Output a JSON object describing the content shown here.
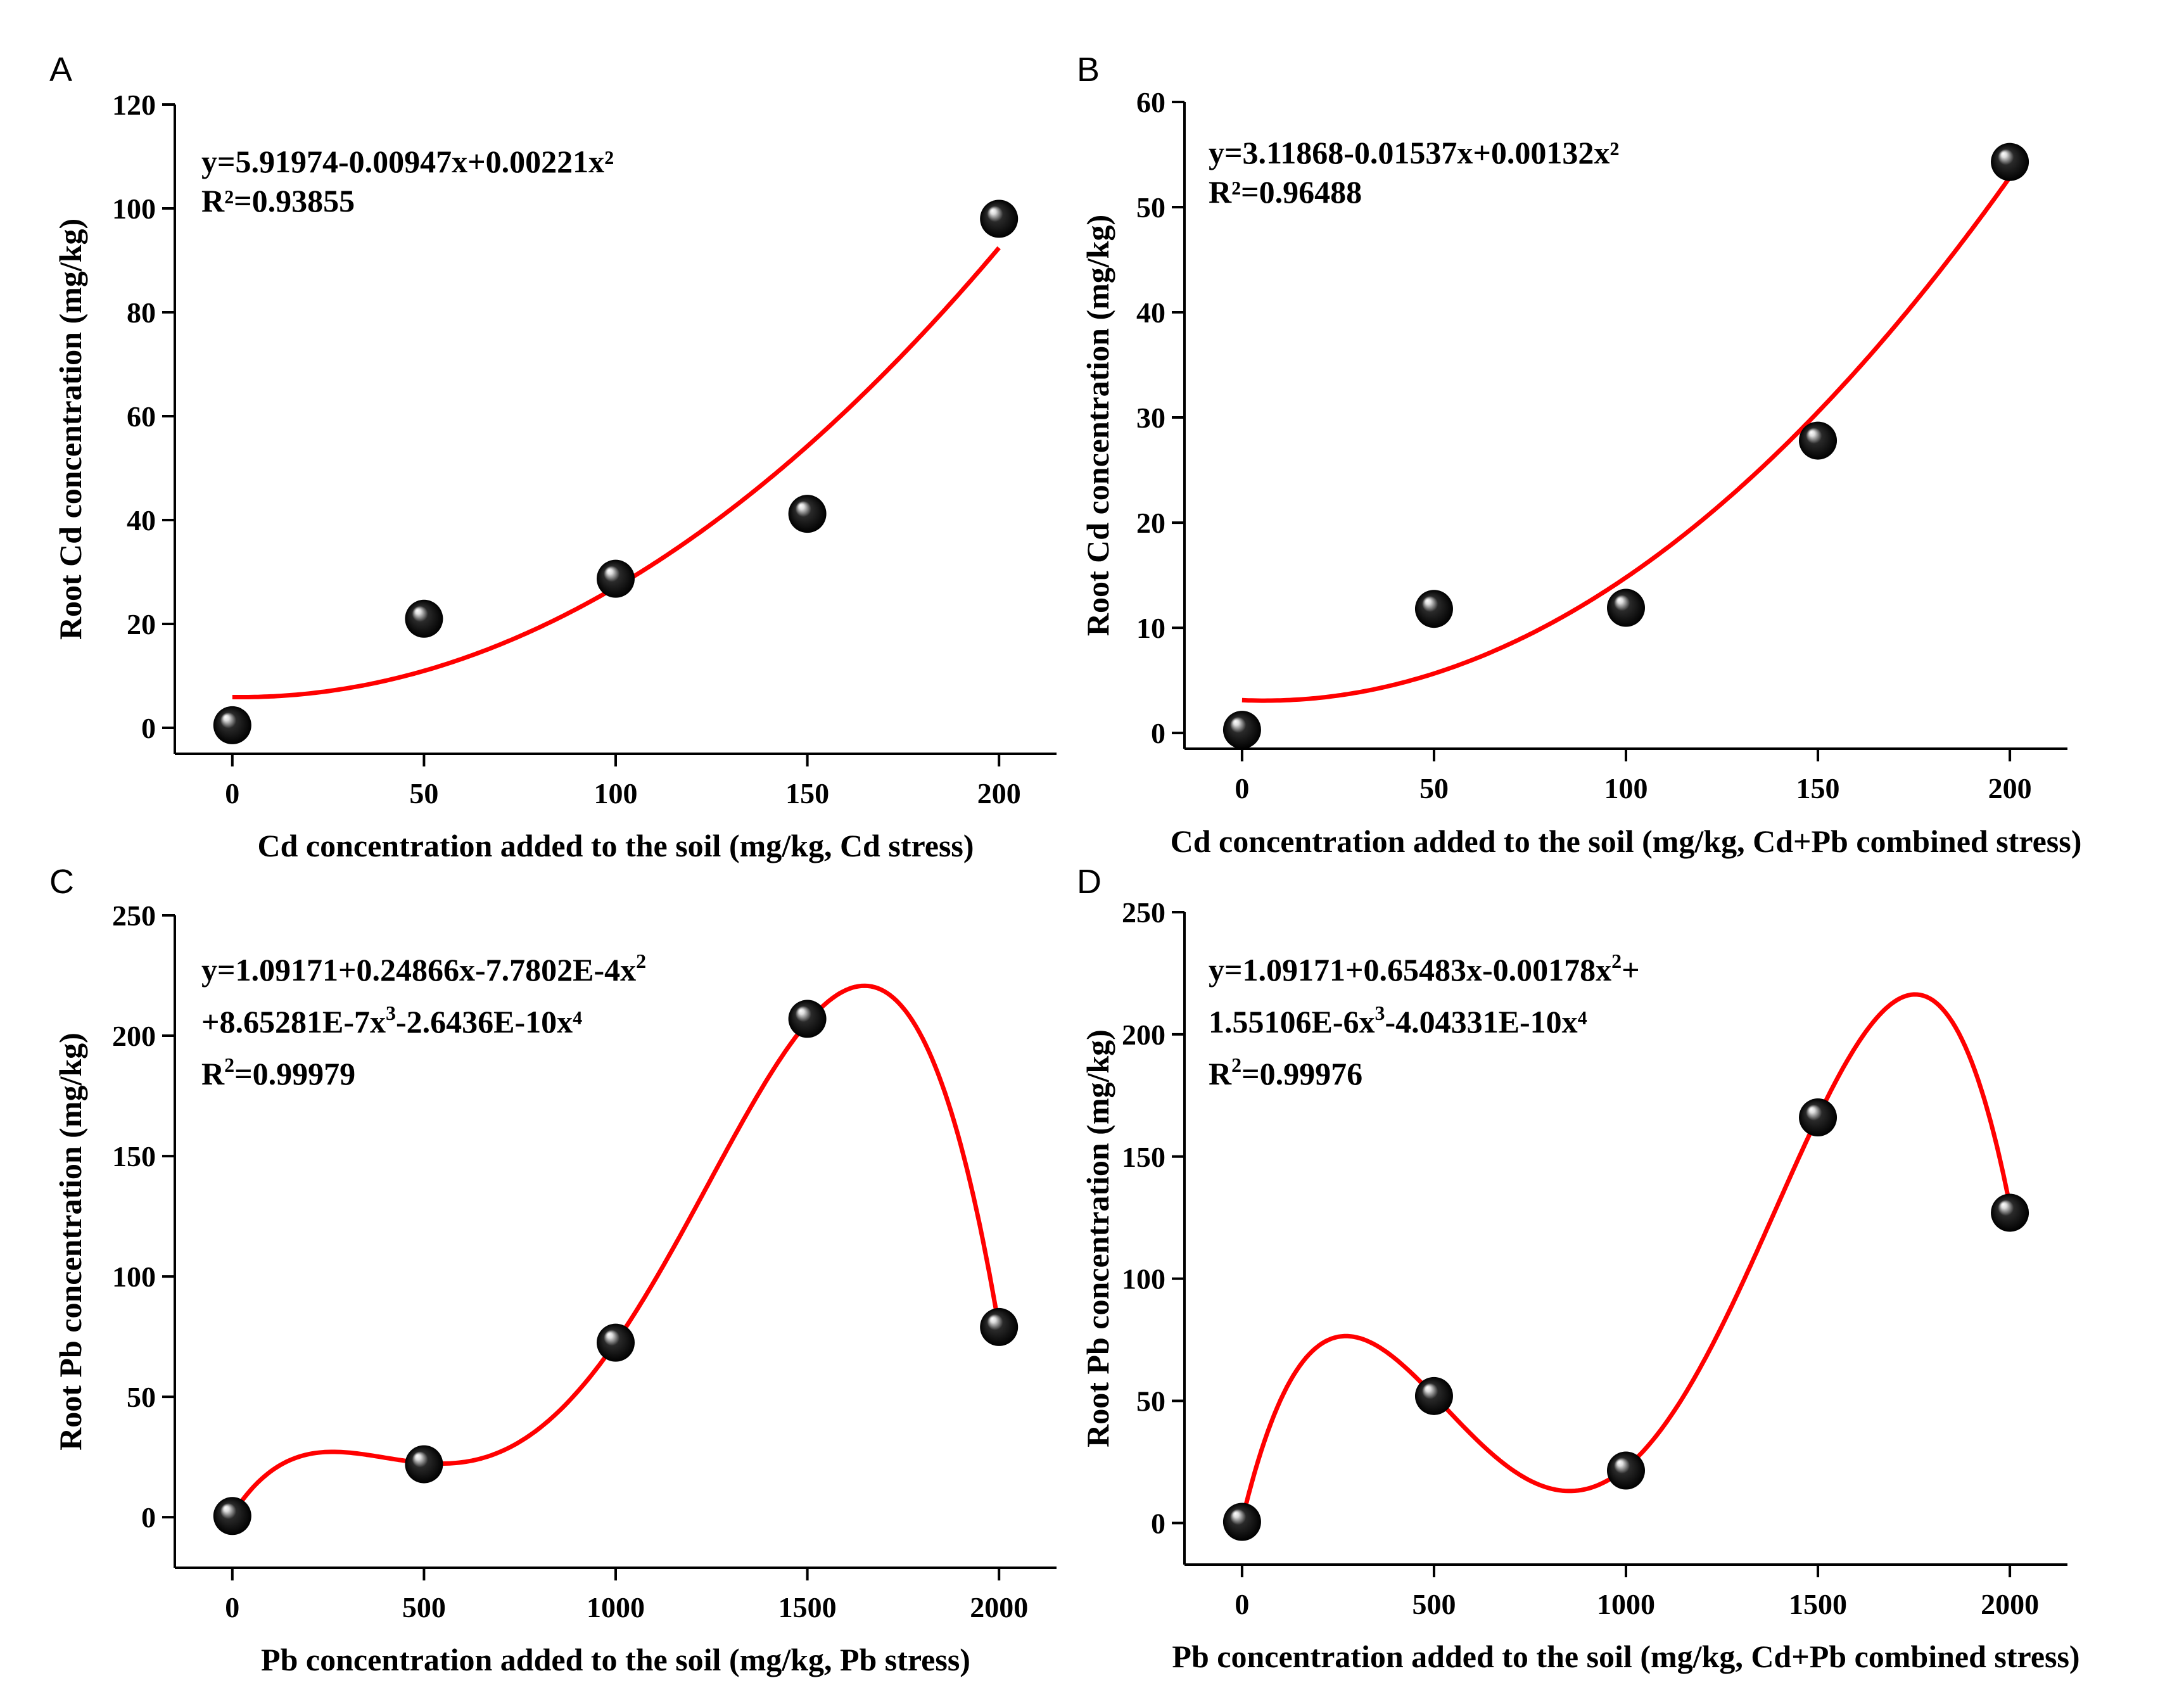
{
  "chart_data": [
    {
      "panel": "A",
      "type": "scatter",
      "x": [
        0,
        50,
        100,
        150,
        200
      ],
      "y": [
        0.5,
        21,
        28.7,
        41.2,
        98
      ],
      "xlabel": "Cd concentration added to the soil (mg/kg, Cd stress)",
      "ylabel": "Root Cd concentration (mg/kg)",
      "xlim": [
        -15,
        215
      ],
      "ylim": [
        -5,
        120
      ],
      "xticks": [
        0,
        50,
        100,
        150,
        200
      ],
      "yticks": [
        0,
        20,
        40,
        60,
        80,
        100,
        120
      ],
      "fit": {
        "coefficients": [
          5.91974,
          -0.00947,
          0.00221
        ],
        "range": [
          0,
          200
        ],
        "color": "#ff0000"
      },
      "annotation": [
        {
          "pre": "y=5.91974-0.00947x+0.00221x²",
          "sup": "",
          "post": ""
        },
        {
          "pre": "R²=0.93855",
          "sup": "",
          "post": ""
        }
      ],
      "marker_color": "#000000",
      "grid": false
    },
    {
      "panel": "B",
      "type": "scatter",
      "x": [
        0,
        50,
        100,
        150,
        200
      ],
      "y": [
        0.3,
        11.8,
        11.9,
        27.8,
        54.3
      ],
      "xlabel": "Cd concentration added to the soil (mg/kg, Cd+Pb combined stress)",
      "ylabel": "Root Cd concentration (mg/kg)",
      "xlim": [
        -15,
        215
      ],
      "ylim": [
        -1.5,
        60
      ],
      "xticks": [
        0,
        50,
        100,
        150,
        200
      ],
      "yticks": [
        0,
        10,
        20,
        30,
        40,
        50,
        60
      ],
      "fit": {
        "coefficients": [
          3.11868,
          -0.01537,
          0.00132
        ],
        "range": [
          0,
          200
        ],
        "color": "#ff0000"
      },
      "annotation": [
        {
          "pre": "y=3.11868-0.01537x+0.00132x²",
          "sup": "",
          "post": ""
        },
        {
          "pre": "R²=0.96488",
          "sup": "",
          "post": ""
        }
      ],
      "marker_color": "#000000",
      "grid": false
    },
    {
      "panel": "C",
      "type": "scatter",
      "x": [
        0,
        500,
        1000,
        1500,
        2000
      ],
      "y": [
        0.5,
        22,
        72.5,
        207,
        79
      ],
      "xlabel": "Pb concentration added to the soil (mg/kg, Pb stress)",
      "ylabel": "Root Pb concentration (mg/kg)",
      "xlim": [
        -150,
        2150
      ],
      "ylim": [
        -21,
        250
      ],
      "xticks": [
        0,
        500,
        1000,
        1500,
        2000
      ],
      "yticks": [
        0,
        50,
        100,
        150,
        200,
        250
      ],
      "fit": {
        "coefficients": [
          1.09171,
          0.24866,
          -0.00077802,
          8.65281e-07,
          -2.6436e-10
        ],
        "range": [
          0,
          2000
        ],
        "color": "#ff0000"
      },
      "annotation": [
        {
          "pre": "y=1.09171+0.24866x-7.7802E-4x",
          "sup": "2",
          "post": ""
        },
        {
          "pre": "+8.65281E-7x",
          "sup": "3",
          "post": "-2.6436E-10x⁴"
        },
        {
          "pre": "R",
          "sup": "2",
          "post": "=0.99979"
        }
      ],
      "marker_color": "#000000",
      "grid": false
    },
    {
      "panel": "D",
      "type": "scatter",
      "x": [
        0,
        500,
        1000,
        1500,
        2000
      ],
      "y": [
        0.5,
        52,
        21.5,
        166,
        127
      ],
      "xlabel": "Pb concentration added to the soil (mg/kg, Cd+Pb combined stress)",
      "ylabel": "Root Pb concentration (mg/kg)",
      "xlim": [
        -150,
        2150
      ],
      "ylim": [
        -17,
        250
      ],
      "xticks": [
        0,
        500,
        1000,
        1500,
        2000
      ],
      "yticks": [
        0,
        50,
        100,
        150,
        200,
        250
      ],
      "fit": {
        "coefficients": [
          1.09171,
          0.65483,
          -0.00178,
          1.55106e-06,
          -4.04331e-10
        ],
        "range": [
          0,
          2000
        ],
        "color": "#ff0000"
      },
      "annotation": [
        {
          "pre": "y=1.09171+0.65483x-0.00178x",
          "sup": "2",
          "post": "+"
        },
        {
          "pre": "1.55106E-6x",
          "sup": "3",
          "post": "-4.04331E-10x⁴"
        },
        {
          "pre": "R",
          "sup": "2",
          "post": "=0.99976"
        }
      ],
      "marker_color": "#000000",
      "grid": false
    }
  ]
}
